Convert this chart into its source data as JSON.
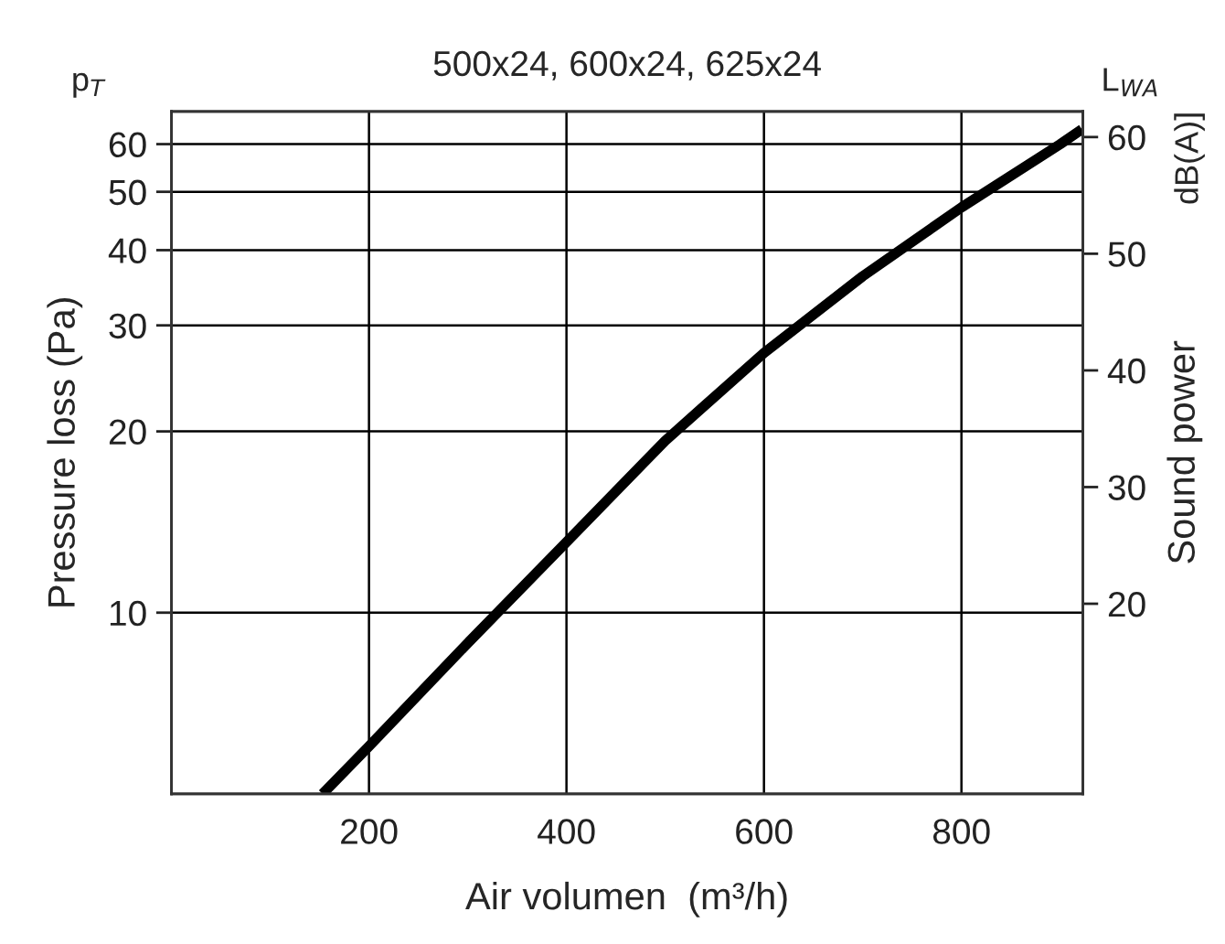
{
  "chart_data": {
    "type": "line",
    "title": "500x24, 600x24, 625x24",
    "xlabel": "Air volumen  (m³/h)",
    "ylabel": "Pressure loss (Pa)",
    "y2label": "Sound power",
    "annotations": [
      "p$_{T}$",
      "L$_{WA}$",
      "dB(A)]"
    ],
    "x": [
      153,
      200,
      300,
      400,
      500,
      600,
      700,
      800,
      900,
      922
    ],
    "series": [
      {
        "color": "#000000",
        "values": [
          5.0,
          6.0,
          8.9,
          13.1,
          19.3,
          27.0,
          36.2,
          47.1,
          60.0,
          63.5
        ]
      }
    ],
    "xlim": [
      0,
      923
    ],
    "xticks": [
      200,
      400,
      600,
      800
    ],
    "log": "y",
    "ylim": [
      5,
      68
    ],
    "yticks": [
      10,
      20,
      30,
      40,
      50,
      60
    ],
    "y2lim": [
      3.7,
      62.2
    ],
    "y2ticks": [
      20,
      30,
      40,
      50,
      60
    ],
    "grid": true,
    "marker": "none",
    "line_style": "solid"
  }
}
